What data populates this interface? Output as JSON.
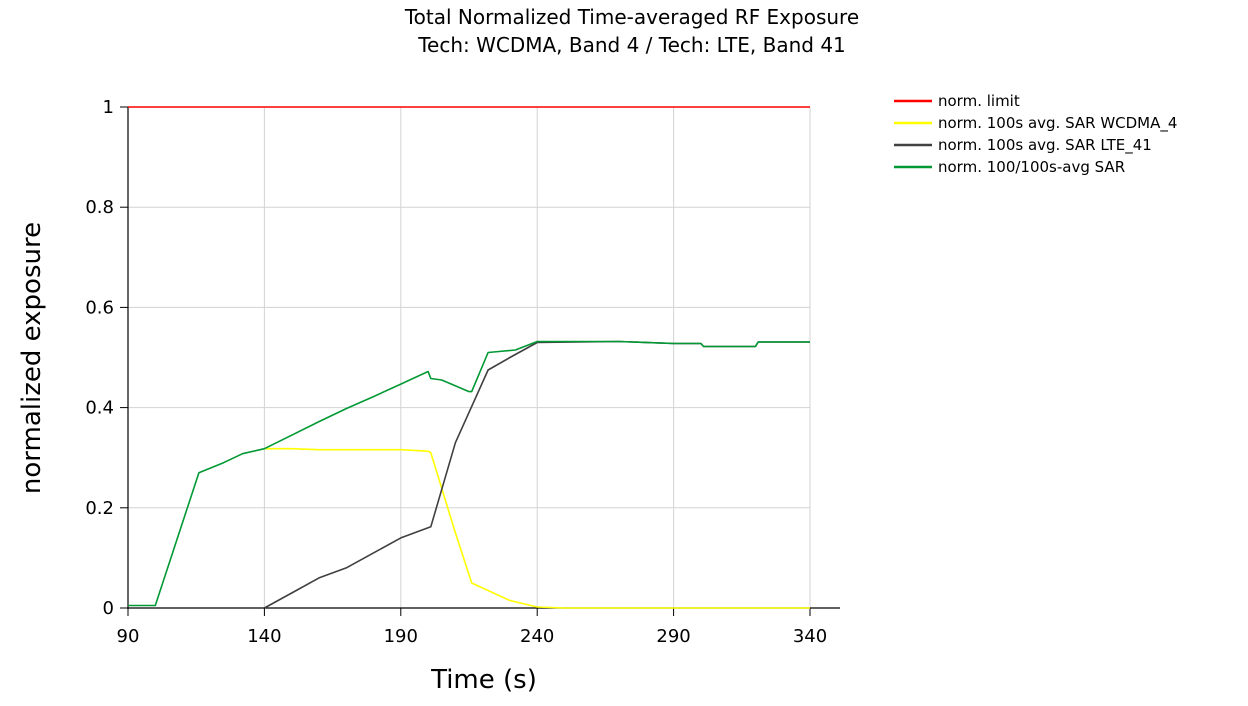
{
  "chart_data": {
    "type": "line",
    "title": "Total Normalized Time-averaged RF Exposure",
    "subtitle": "Tech: WCDMA, Band 4 / Tech: LTE, Band 41",
    "xlabel": "Time (s)",
    "ylabel": "normalized exposure",
    "xlim": [
      90,
      340
    ],
    "ylim": [
      0,
      1
    ],
    "xticks": [
      "90",
      "140",
      "190",
      "240",
      "290",
      "340"
    ],
    "yticks": [
      "0",
      "0.2",
      "0.4",
      "0.6",
      "0.8",
      "1"
    ],
    "xtick_values": [
      90,
      140,
      190,
      240,
      290,
      340
    ],
    "ytick_values": [
      0,
      0.2,
      0.4,
      0.6,
      0.8,
      1
    ],
    "grid": true,
    "legend_position": "top-right-outside",
    "series": [
      {
        "name": "norm. limit",
        "color": "#ff0000",
        "points": [
          [
            90,
            1
          ],
          [
            340,
            1
          ]
        ]
      },
      {
        "name": "norm. 100s avg. SAR WCDMA_4",
        "color": "#ffff00",
        "points": [
          [
            140,
            0.318
          ],
          [
            150,
            0.318
          ],
          [
            160,
            0.316
          ],
          [
            170,
            0.316
          ],
          [
            180,
            0.316
          ],
          [
            190,
            0.316
          ],
          [
            200,
            0.313
          ],
          [
            201,
            0.31
          ],
          [
            210,
            0.15
          ],
          [
            216,
            0.05
          ],
          [
            220,
            0.04
          ],
          [
            230,
            0.015
          ],
          [
            240,
            0.002
          ],
          [
            250,
            0
          ],
          [
            340,
            0
          ]
        ]
      },
      {
        "name": "norm. 100s avg. SAR LTE_41",
        "color": "#404040",
        "points": [
          [
            140,
            0
          ],
          [
            150,
            0.03
          ],
          [
            160,
            0.06
          ],
          [
            170,
            0.08
          ],
          [
            180,
            0.11
          ],
          [
            190,
            0.14
          ],
          [
            201,
            0.162
          ],
          [
            210,
            0.33
          ],
          [
            222,
            0.475
          ],
          [
            230,
            0.5
          ],
          [
            240,
            0.53
          ],
          [
            270,
            0.532
          ],
          [
            290,
            0.528
          ],
          [
            300,
            0.528
          ],
          [
            301,
            0.522
          ],
          [
            320,
            0.522
          ],
          [
            321,
            0.531
          ],
          [
            340,
            0.531
          ]
        ]
      },
      {
        "name": "norm. 100/100s-avg SAR",
        "color": "#009933",
        "points": [
          [
            90,
            0.005
          ],
          [
            100,
            0.005
          ],
          [
            116,
            0.27
          ],
          [
            125,
            0.29
          ],
          [
            132,
            0.308
          ],
          [
            140,
            0.318
          ],
          [
            150,
            0.345
          ],
          [
            160,
            0.372
          ],
          [
            170,
            0.398
          ],
          [
            180,
            0.422
          ],
          [
            190,
            0.447
          ],
          [
            200,
            0.472
          ],
          [
            201,
            0.458
          ],
          [
            205,
            0.455
          ],
          [
            215,
            0.432
          ],
          [
            216,
            0.432
          ],
          [
            222,
            0.51
          ],
          [
            226,
            0.512
          ],
          [
            232,
            0.515
          ],
          [
            240,
            0.532
          ],
          [
            270,
            0.532
          ],
          [
            290,
            0.528
          ],
          [
            300,
            0.528
          ],
          [
            301,
            0.522
          ],
          [
            320,
            0.522
          ],
          [
            321,
            0.531
          ],
          [
            340,
            0.531
          ]
        ]
      }
    ]
  }
}
